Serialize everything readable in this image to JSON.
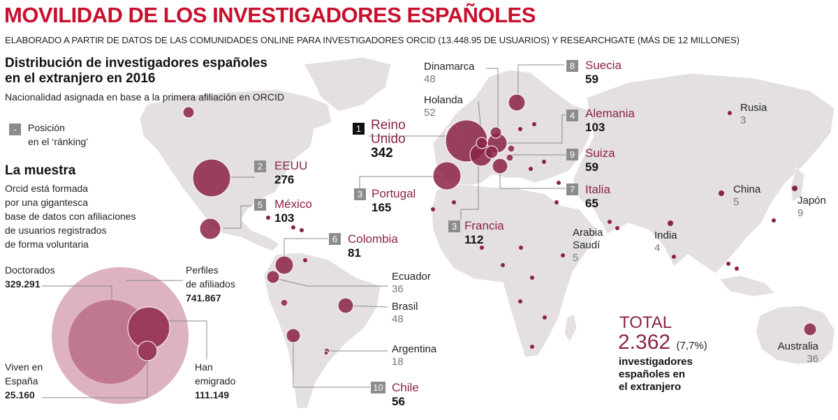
{
  "title": "MOVILIDAD DE LOS INVESTIGADORES ESPAÑOLES",
  "subtitle": "ELABORADO A PARTIR DE DATOS DE LAS COMUNIDADES ONLINE PARA INVESTIGADORES ORCID (13.448.95 DE USUARIOS) Y RESEARCHGATE (MÁS DE 12 MILLONES)",
  "distribution": {
    "heading_line1": "Distribución de investigadores españoles",
    "heading_line2": "en el extranjero en 2016",
    "note": "Nacionalidad asignada en base a la primera afiliación en ORCID"
  },
  "legend": {
    "symbol": "-",
    "line1": "Posición",
    "line2": "en el ‘ránking’"
  },
  "sample": {
    "heading": "La muestra",
    "lines": [
      "Orcid está formada",
      "por una gigantesca",
      "base de datos con afiliaciones",
      "de usuarios registrados",
      "de forma voluntaria"
    ],
    "doctorados_label": "Doctorados",
    "doctorados_value": "329.291",
    "perfiles_label1": "Perfiles",
    "perfiles_label2": "de afiliados",
    "perfiles_value": "741.867",
    "viven_label1": "Viven en",
    "viven_label2": "España",
    "viven_value": "25.160",
    "emigrado_label1": "Han",
    "emigrado_label2": "emigrado",
    "emigrado_value": "111.149"
  },
  "countries": {
    "reino_unido": {
      "rank": "1",
      "name1": "Reino",
      "name2": "Unido",
      "value": "342"
    },
    "eeuu": {
      "rank": "2",
      "name": "EEUU",
      "value": "276"
    },
    "portugal": {
      "rank": "3",
      "name": "Portugal",
      "value": "165"
    },
    "francia": {
      "rank": "3",
      "name": "Francia",
      "value": "112"
    },
    "alemania": {
      "rank": "4",
      "name": "Alemania",
      "value": "103"
    },
    "mexico": {
      "rank": "5",
      "name": "México",
      "value": "103"
    },
    "colombia": {
      "rank": "6",
      "name": "Colombia",
      "value": "81"
    },
    "italia": {
      "rank": "7",
      "name": "Italia",
      "value": "65"
    },
    "suecia": {
      "rank": "8",
      "name": "Suecia",
      "value": "59"
    },
    "suiza": {
      "rank": "9",
      "name": "Suiza",
      "value": "59"
    },
    "chile": {
      "rank": "10",
      "name": "Chile",
      "value": "56"
    }
  },
  "others": {
    "dinamarca": {
      "name": "Dinamarca",
      "value": "48"
    },
    "holanda": {
      "name": "Holanda",
      "value": "52"
    },
    "ecuador": {
      "name": "Ecuador",
      "value": "36"
    },
    "brasil": {
      "name": "Brasil",
      "value": "48"
    },
    "argentina": {
      "name": "Argentina",
      "value": "18"
    },
    "rusia": {
      "name": "Rusia",
      "value": "3"
    },
    "china": {
      "name": "China",
      "value": "5"
    },
    "japon": {
      "name": "Japón",
      "value": "9"
    },
    "india": {
      "name": "India",
      "value": "4"
    },
    "arabia": {
      "name1": "Arabia",
      "name2": "Saudí",
      "value": "5"
    },
    "australia": {
      "name": "Australia",
      "value": "36"
    }
  },
  "total": {
    "label": "TOTAL",
    "value": "2.362",
    "pct": "(7,7%)",
    "desc1": "investigadores",
    "desc2": "españoles en",
    "desc3": "el extranjero"
  },
  "colors": {
    "accent": "#c8102e",
    "bubble": "#8b2346",
    "land": "#e4dfe2"
  }
}
